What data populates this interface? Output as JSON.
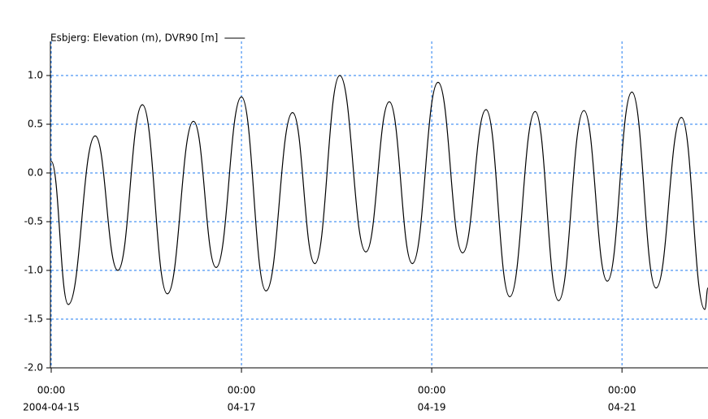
{
  "chart_data": {
    "type": "line",
    "series": [
      {
        "name": "Esbjerg: Elevation (m), DVR90 [m]",
        "color": "#000000",
        "x": [
          "2004-04-15 00:00",
          "2004-04-15 04:18",
          "2004-04-15 11:06",
          "2004-04-15 16:48",
          "2004-04-15 23:00",
          "2004-04-16 05:18",
          "2004-04-16 11:54",
          "2004-04-16 17:36",
          "2004-04-17 00:00",
          "2004-04-17 06:12",
          "2004-04-17 12:54",
          "2004-04-17 18:30",
          "2004-04-18 00:48",
          "2004-04-18 07:24",
          "2004-04-18 13:18",
          "2004-04-18 19:06",
          "2004-04-19 01:36",
          "2004-04-19 07:48",
          "2004-04-19 13:42",
          "2004-04-19 19:42",
          "2004-04-20 02:06",
          "2004-04-20 08:00",
          "2004-04-20 14:24",
          "2004-04-20 20:18",
          "2004-04-21 02:30",
          "2004-04-21 08:36",
          "2004-04-21 15:00",
          "2004-04-21 20:54",
          "2004-04-21 21:42"
        ],
        "values": [
          0.12,
          -1.35,
          0.38,
          -1.0,
          0.7,
          -1.24,
          0.53,
          -0.97,
          0.78,
          -1.21,
          0.62,
          -0.93,
          1.0,
          -0.81,
          0.73,
          -0.93,
          0.93,
          -0.82,
          0.65,
          -1.27,
          0.63,
          -1.31,
          0.64,
          -1.11,
          0.83,
          -1.18,
          0.57,
          -1.4,
          -1.18
        ]
      }
    ],
    "xlim": [
      "2004-04-15 00:00",
      "2004-04-21 21:42"
    ],
    "xticks": [
      {
        "value": "2004-04-15 00:00",
        "label": [
          "00:00",
          "2004-04-15"
        ]
      },
      {
        "value": "2004-04-17 00:00",
        "label": [
          "00:00",
          "04-17"
        ]
      },
      {
        "value": "2004-04-19 00:00",
        "label": [
          "00:00",
          "04-19"
        ]
      },
      {
        "value": "2004-04-21 00:00",
        "label": [
          "00:00",
          "04-21"
        ]
      }
    ],
    "ylim": [
      -2,
      1.35
    ],
    "yticks": [
      {
        "value": -2,
        "label": "-2.0"
      },
      -1.5,
      {
        "value": -1,
        "label": "-1.0"
      },
      -0.5,
      {
        "value": 0,
        "label": "0.0"
      },
      0.5,
      {
        "value": 1,
        "label": "1.0"
      }
    ],
    "grid": true,
    "grid_color": "#1f7bf0"
  }
}
